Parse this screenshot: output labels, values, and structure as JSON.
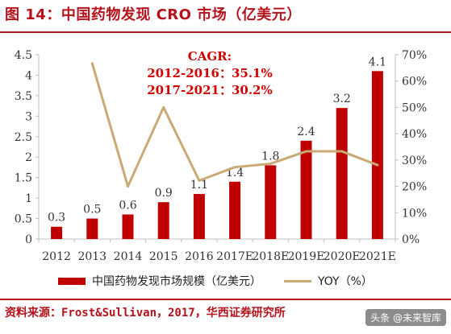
{
  "figure": {
    "title": "图 14：中国药物发现 CRO 市场（亿美元）",
    "source": "资料来源：Frost&Sullivan，2017，华西证券研究所",
    "watermark": "头条 @未来智库",
    "accent_color": "#b5121b"
  },
  "chart_data": {
    "type": "bar",
    "categories": [
      "2012",
      "2013",
      "2014",
      "2015",
      "2016",
      "2017E",
      "2018E",
      "2019E",
      "2020E",
      "2021E"
    ],
    "series": [
      {
        "name": "中国药物发现市场规模（亿美元）",
        "type": "bar",
        "axis": "left",
        "color": "#c00000",
        "values": [
          0.3,
          0.5,
          0.6,
          0.9,
          1.1,
          1.4,
          1.8,
          2.4,
          3.2,
          4.1
        ]
      },
      {
        "name": "YOY（%）",
        "type": "line",
        "axis": "right",
        "color": "#c9aa75",
        "values": [
          null,
          66.7,
          20.0,
          50.0,
          22.2,
          27.3,
          28.6,
          33.3,
          33.3,
          28.1
        ]
      }
    ],
    "y_left": {
      "min": 0,
      "max": 4.5,
      "ticks": [
        0,
        0.5,
        1,
        1.5,
        2,
        2.5,
        3,
        3.5,
        4,
        4.5
      ],
      "tick_labels": [
        "0",
        "0.5",
        "1",
        "1.5",
        "2",
        "2.5",
        "3",
        "3.5",
        "4",
        "4.5"
      ]
    },
    "y_right": {
      "min": 0,
      "max": 70,
      "ticks": [
        0,
        10,
        20,
        30,
        40,
        50,
        60,
        70
      ],
      "tick_labels": [
        "0%",
        "10%",
        "20%",
        "30%",
        "40%",
        "50%",
        "60%",
        "70%"
      ]
    },
    "data_labels": [
      "0.3",
      "0.5",
      "0.6",
      "0.9",
      "1.1",
      "1.4",
      "1.8",
      "2.4",
      "3.2",
      "4.1"
    ],
    "annotation": {
      "lines": [
        "CAGR:",
        "2012-2016：35.1%",
        "2017-2021：30.2%"
      ],
      "color": "#d10000"
    },
    "legend": {
      "bar_label": "中国药物发现市场规模（亿美元）",
      "line_label": "YOY（%）",
      "placement": "bottom"
    },
    "grid": false
  }
}
